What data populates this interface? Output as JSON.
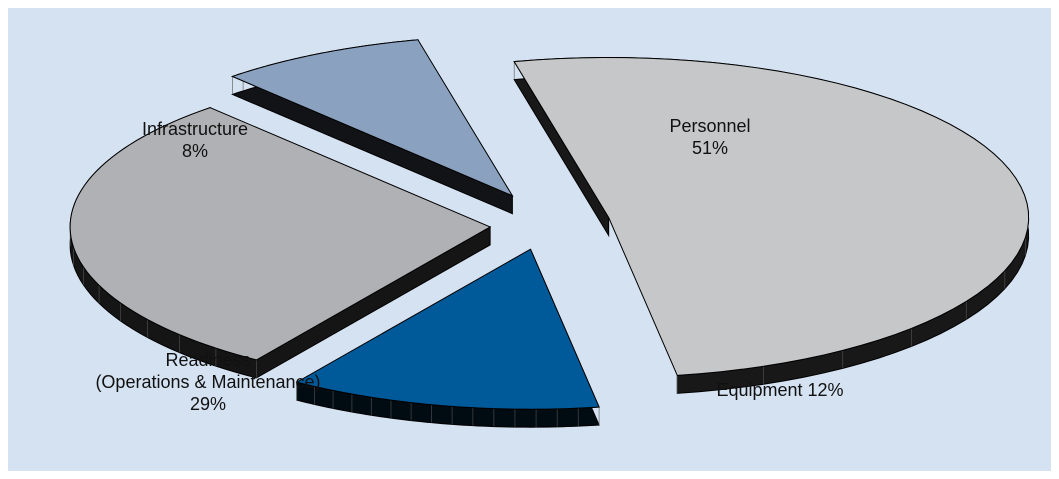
{
  "chart_data": {
    "type": "pie",
    "style": "3d-exploded",
    "slices": [
      {
        "name": "Personnel",
        "value": 51,
        "label": "51%",
        "color": "#c6c7c9"
      },
      {
        "name": "Equipment",
        "value": 12,
        "label": "12%",
        "color": "#005a9a"
      },
      {
        "name": "Readiness (Operations & Maintenance)",
        "value": 29,
        "label": "29%",
        "color": "#b0b1b4"
      },
      {
        "name": "Infrastructure",
        "value": 8,
        "label": "8%",
        "color": "#8aa2bf"
      }
    ]
  },
  "labels": {
    "personnel_name": "Personnel",
    "personnel_pct": "51%",
    "infrastructure_name": "Infrastructure",
    "infrastructure_pct": "8%",
    "readiness_name": "Readiness",
    "readiness_sub": "(Operations & Maintenance)",
    "readiness_pct": "29%",
    "equipment_text": "Equipment 12%"
  }
}
